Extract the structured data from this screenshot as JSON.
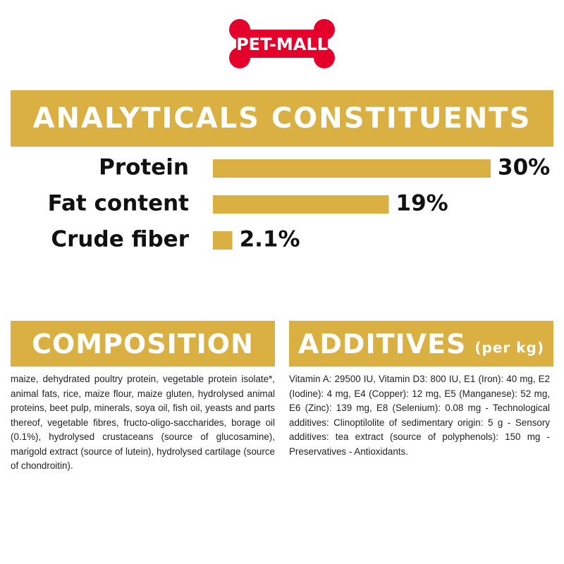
{
  "logo": {
    "text": "PET-MALL"
  },
  "chart_data": {
    "type": "bar",
    "orientation": "horizontal",
    "title": "ANALYTICALS CONSTITUENTS",
    "categories": [
      "Protein",
      "Fat content",
      "Crude fiber"
    ],
    "values": [
      30,
      19,
      2.1
    ],
    "value_labels": [
      "30%",
      "19%",
      "2.1%"
    ],
    "color": "#dab042"
  },
  "composition": {
    "title": "COMPOSITION",
    "text": "maize, dehydrated poultry protein, vegetable protein isolate*, animal fats, rice, maize flour, maize gluten, hydrolysed animal proteins, beet pulp, minerals, soya oil, fish oil, yeasts and parts thereof, vegetable fibres, fructo-oligo-saccharides, borage oil (0.1%), hydrolysed crustaceans (source of glucosamine), marigold extract (source of lutein), hydrolysed cartilage (source of chondroitin)."
  },
  "additives": {
    "title": "ADDITIVES",
    "unit": "(per kg)",
    "text": "Vitamin A: 29500 IU, Vitamin D3: 800 IU, E1 (Iron): 40 mg, E2 (Iodine): 4 mg, E4 (Copper): 12 mg, E5 (Manganese): 52 mg, E6 (Zinc): 139 mg, E8 (Selenium): 0.08 mg - Technological additives: Clinoptilolite of sedimentary origin: 5 g - Sensory additives: tea extract (source of polyphenols): 150 mg - Preservatives - Antioxidants."
  }
}
